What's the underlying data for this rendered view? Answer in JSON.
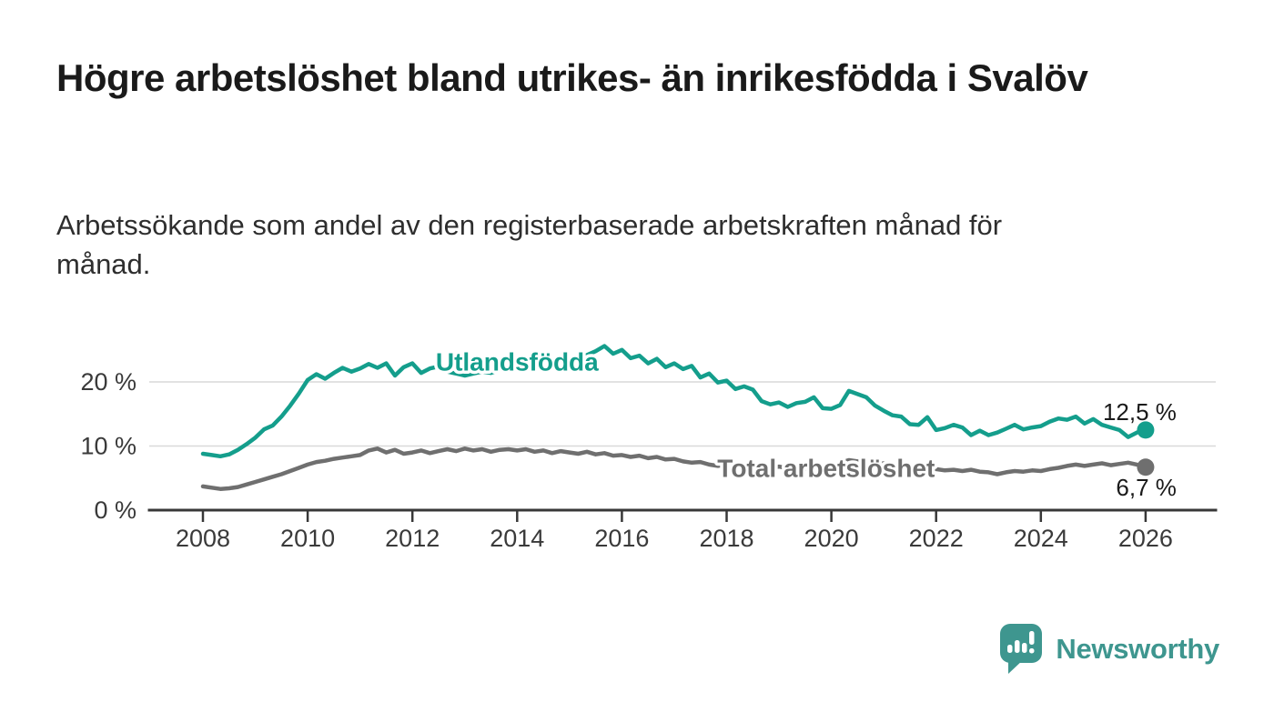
{
  "title": "Högre arbetslöshet bland utrikes- än inrikesfödda i Svalöv",
  "subtitle": "Arbetssökande som andel av den registerbaserade arbetskraften månad för månad.",
  "branding": {
    "name": "Newsworthy",
    "logo_icon": "speech-bubble-bar-chart-icon",
    "brand_color": "#3E968F"
  },
  "colors": {
    "foreign_born_line": "#149E8C",
    "total_line": "#6F6F6F",
    "gridline": "#d9d9d9",
    "axis": "#383838",
    "tick_label": "#3a3a3a",
    "annotation_text": "#1a1a1a",
    "background": "#ffffff"
  },
  "chart_data": {
    "type": "line",
    "title": "Högre arbetslöshet bland utrikes- än inrikesfödda i Svalöv",
    "xlabel": "",
    "ylabel": "",
    "grid": "horizontal",
    "legend_position": "inline-labels",
    "x_start": 2008.0,
    "x_step_years": 0.16667,
    "x_ticks": [
      2008,
      2010,
      2012,
      2014,
      2016,
      2018,
      2020,
      2022,
      2024,
      2026
    ],
    "xlim": [
      2007,
      2027.3
    ],
    "ylim": [
      0,
      27
    ],
    "y_ticks": [
      {
        "value": 0,
        "label": "0 %"
      },
      {
        "value": 10,
        "label": "10 %"
      },
      {
        "value": 20,
        "label": "20 %"
      }
    ],
    "series": [
      {
        "name": "Utlandsfödda",
        "color": "#149E8C",
        "label_anchor": {
          "year": 2014.0,
          "value": 21.8
        },
        "end_value_label": "12,5 %",
        "end_label_side": "above",
        "values": [
          8.8,
          8.6,
          8.4,
          8.7,
          9.4,
          10.3,
          11.3,
          12.6,
          13.2,
          14.6,
          16.3,
          18.2,
          20.3,
          21.2,
          20.5,
          21.4,
          22.2,
          21.6,
          22.1,
          22.8,
          22.2,
          22.9,
          21.0,
          22.3,
          22.9,
          21.4,
          22.1,
          22.4,
          21.6,
          21.3,
          21.0,
          21.3,
          21.6,
          21.4,
          21.9,
          22.1,
          22.3,
          22.0,
          22.6,
          22.9,
          23.2,
          23.5,
          23.8,
          23.5,
          24.2,
          24.8,
          25.6,
          24.4,
          25.0,
          23.7,
          24.1,
          22.9,
          23.6,
          22.3,
          22.9,
          22.0,
          22.5,
          20.7,
          21.3,
          19.9,
          20.2,
          18.9,
          19.3,
          18.8,
          17.0,
          16.5,
          16.8,
          16.1,
          16.7,
          16.9,
          17.6,
          15.9,
          15.8,
          16.4,
          18.6,
          18.1,
          17.6,
          16.3,
          15.5,
          14.8,
          14.6,
          13.4,
          13.3,
          14.5,
          12.5,
          12.8,
          13.3,
          12.9,
          11.7,
          12.4,
          11.7,
          12.1,
          12.7,
          13.3,
          12.6,
          12.9,
          13.1,
          13.8,
          14.3,
          14.1,
          14.6,
          13.5,
          14.2,
          13.3,
          12.9,
          12.5,
          11.4,
          12.1,
          12.5
        ]
      },
      {
        "name": "Total arbetslöshet",
        "color": "#6F6F6F",
        "label_anchor": {
          "year": 2019.9,
          "value": 5.2
        },
        "end_value_label": "6,7 %",
        "end_label_side": "below",
        "values": [
          3.7,
          3.5,
          3.3,
          3.4,
          3.6,
          4.0,
          4.4,
          4.8,
          5.2,
          5.6,
          6.1,
          6.6,
          7.1,
          7.5,
          7.7,
          8.0,
          8.2,
          8.4,
          8.6,
          9.3,
          9.6,
          9.0,
          9.4,
          8.8,
          9.0,
          9.3,
          8.9,
          9.2,
          9.5,
          9.2,
          9.6,
          9.3,
          9.5,
          9.1,
          9.4,
          9.5,
          9.3,
          9.5,
          9.1,
          9.3,
          8.9,
          9.2,
          9.0,
          8.8,
          9.1,
          8.7,
          8.9,
          8.5,
          8.6,
          8.3,
          8.5,
          8.1,
          8.3,
          7.9,
          8.0,
          7.6,
          7.4,
          7.5,
          7.1,
          6.9,
          7.1,
          6.8,
          7.0,
          6.7,
          6.9,
          6.6,
          6.8,
          6.5,
          6.7,
          6.4,
          6.6,
          6.8,
          7.0,
          7.4,
          7.8,
          7.6,
          7.4,
          7.2,
          7.3,
          7.0,
          6.8,
          6.9,
          6.6,
          6.7,
          6.4,
          6.2,
          6.3,
          6.1,
          6.3,
          6.0,
          5.9,
          5.6,
          5.9,
          6.1,
          6.0,
          6.2,
          6.1,
          6.4,
          6.6,
          6.9,
          7.1,
          6.9,
          7.1,
          7.3,
          7.0,
          7.2,
          7.4,
          7.1,
          6.7
        ]
      }
    ]
  }
}
